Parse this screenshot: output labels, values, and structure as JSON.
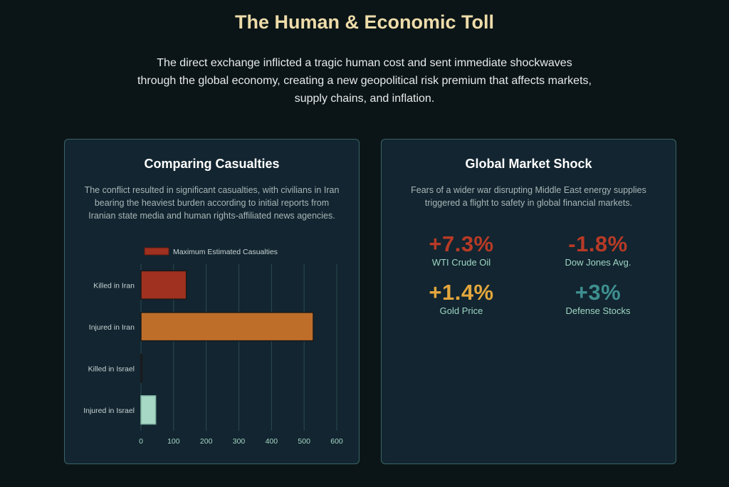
{
  "header": {
    "title": "The Human & Economic Toll",
    "intro": "The direct exchange inflicted a tragic human cost and sent immediate shockwaves through the global economy, creating a new geopolitical risk premium that affects markets, supply chains, and inflation."
  },
  "casualties_card": {
    "title": "Comparing Casualties",
    "description": "The conflict resulted in significant casualties, with civilians in Iran bearing the heaviest burden according to initial reports from Iranian state media and human rights-affiliated news agencies."
  },
  "market_card": {
    "title": "Global Market Shock",
    "description": "Fears of a wider war disrupting Middle East energy supplies triggered a flight to safety in global financial markets.",
    "metrics": [
      {
        "value": "+7.3%",
        "label": "WTI Crude Oil",
        "color": "#b83a26"
      },
      {
        "value": "-1.8%",
        "label": "Dow Jones Avg.",
        "color": "#b83a26"
      },
      {
        "value": "+1.4%",
        "label": "Gold Price",
        "color": "#e3a63d"
      },
      {
        "value": "+3%",
        "label": "Defense Stocks",
        "color": "#3e8f90"
      }
    ]
  },
  "chart_data": {
    "type": "bar",
    "orientation": "horizontal",
    "categories": [
      "Killed in Iran",
      "Injured in Iran",
      "Killed in Israel",
      "Injured in Israel"
    ],
    "series": [
      {
        "name": "Maximum Estimated Casualties",
        "values": [
          139,
          528,
          3,
          45
        ]
      }
    ],
    "bar_colors": [
      "#a0301f",
      "#bf6e2a",
      "#1b6f8f",
      "#a7d7c5"
    ],
    "legend_color": "#a0301f",
    "legend_position": "top",
    "xlim": [
      0,
      600
    ],
    "xticks": [
      "0",
      "100",
      "200",
      "300",
      "400",
      "500",
      "600"
    ],
    "xtick_values": [
      0,
      100,
      200,
      300,
      400,
      500,
      600
    ],
    "grid": true
  }
}
